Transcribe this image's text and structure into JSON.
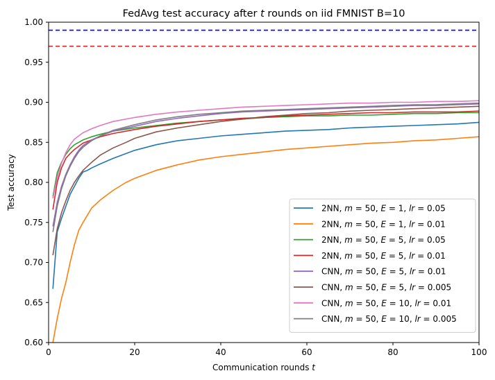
{
  "chart_data": {
    "type": "line",
    "title_parts": [
      "FedAvg test accuracy after ",
      "t",
      " rounds on iid FMNIST B=10"
    ],
    "xlabel_parts": [
      "Communication rounds ",
      "t"
    ],
    "ylabel": "Test accuracy",
    "xlim": [
      0,
      100
    ],
    "ylim": [
      0.6,
      1.0
    ],
    "xticks": [
      0,
      20,
      40,
      60,
      80,
      100
    ],
    "xtick_labels": [
      "0",
      "20",
      "40",
      "60",
      "80",
      "100"
    ],
    "yticks": [
      0.6,
      0.65,
      0.7,
      0.75,
      0.8,
      0.85,
      0.9,
      0.95,
      1.0
    ],
    "ytick_labels": [
      "0.60",
      "0.65",
      "0.70",
      "0.75",
      "0.80",
      "0.85",
      "0.90",
      "0.95",
      "1.00"
    ],
    "grid": false,
    "legend_position": "lower-right",
    "reference_lines": [
      {
        "y": 0.99,
        "color": "#0000ff",
        "style": "dashed"
      },
      {
        "y": 0.97,
        "color": "#d62728",
        "style": "dashed"
      }
    ],
    "series": [
      {
        "name": "2NN, m = 50, E = 1, lr = 0.05",
        "label_parts": [
          "2NN, ",
          "m",
          " = 50, ",
          "E",
          " = 1, ",
          "lr",
          " = 0.05"
        ],
        "color": "#1f77b4",
        "points": [
          [
            1,
            0.667
          ],
          [
            2,
            0.738
          ],
          [
            3,
            0.755
          ],
          [
            4,
            0.77
          ],
          [
            5,
            0.785
          ],
          [
            6,
            0.795
          ],
          [
            7,
            0.805
          ],
          [
            8,
            0.813
          ],
          [
            9,
            0.815
          ],
          [
            10,
            0.818
          ],
          [
            12,
            0.823
          ],
          [
            15,
            0.83
          ],
          [
            20,
            0.84
          ],
          [
            25,
            0.847
          ],
          [
            30,
            0.852
          ],
          [
            35,
            0.855
          ],
          [
            40,
            0.858
          ],
          [
            45,
            0.86
          ],
          [
            50,
            0.862
          ],
          [
            55,
            0.864
          ],
          [
            60,
            0.865
          ],
          [
            65,
            0.866
          ],
          [
            70,
            0.868
          ],
          [
            75,
            0.869
          ],
          [
            80,
            0.87
          ],
          [
            85,
            0.871
          ],
          [
            90,
            0.872
          ],
          [
            95,
            0.873
          ],
          [
            100,
            0.875
          ]
        ]
      },
      {
        "name": "2NN, m = 50, E = 1, lr = 0.01",
        "label_parts": [
          "2NN, ",
          "m",
          " = 50, ",
          "E",
          " = 1, ",
          "lr",
          " = 0.01"
        ],
        "color": "#ff7f0e",
        "points": [
          [
            1,
            0.6
          ],
          [
            2,
            0.63
          ],
          [
            3,
            0.655
          ],
          [
            4,
            0.675
          ],
          [
            5,
            0.7
          ],
          [
            6,
            0.722
          ],
          [
            7,
            0.74
          ],
          [
            8,
            0.75
          ],
          [
            10,
            0.768
          ],
          [
            12,
            0.778
          ],
          [
            15,
            0.79
          ],
          [
            18,
            0.8
          ],
          [
            20,
            0.805
          ],
          [
            25,
            0.815
          ],
          [
            30,
            0.822
          ],
          [
            35,
            0.828
          ],
          [
            40,
            0.832
          ],
          [
            45,
            0.835
          ],
          [
            50,
            0.838
          ],
          [
            55,
            0.841
          ],
          [
            60,
            0.843
          ],
          [
            65,
            0.845
          ],
          [
            70,
            0.847
          ],
          [
            75,
            0.849
          ],
          [
            80,
            0.85
          ],
          [
            85,
            0.852
          ],
          [
            90,
            0.853
          ],
          [
            95,
            0.855
          ],
          [
            100,
            0.857
          ]
        ]
      },
      {
        "name": "2NN, m = 50, E = 5, lr = 0.05",
        "label_parts": [
          "2NN, ",
          "m",
          " = 50, ",
          "E",
          " = 5, ",
          "lr",
          " = 0.05"
        ],
        "color": "#2ca02c",
        "points": [
          [
            1,
            0.782
          ],
          [
            2,
            0.812
          ],
          [
            3,
            0.825
          ],
          [
            4,
            0.835
          ],
          [
            5,
            0.842
          ],
          [
            6,
            0.847
          ],
          [
            7,
            0.85
          ],
          [
            8,
            0.853
          ],
          [
            10,
            0.857
          ],
          [
            12,
            0.86
          ],
          [
            15,
            0.864
          ],
          [
            20,
            0.868
          ],
          [
            25,
            0.871
          ],
          [
            30,
            0.874
          ],
          [
            35,
            0.876
          ],
          [
            40,
            0.878
          ],
          [
            45,
            0.879
          ],
          [
            50,
            0.881
          ],
          [
            55,
            0.882
          ],
          [
            60,
            0.883
          ],
          [
            65,
            0.883
          ],
          [
            70,
            0.884
          ],
          [
            75,
            0.884
          ],
          [
            80,
            0.885
          ],
          [
            85,
            0.886
          ],
          [
            90,
            0.886
          ],
          [
            95,
            0.887
          ],
          [
            100,
            0.887
          ]
        ]
      },
      {
        "name": "2NN, m = 50, E = 5, lr = 0.01",
        "label_parts": [
          "2NN, ",
          "m",
          " = 50, ",
          "E",
          " = 5, ",
          "lr",
          " = 0.01"
        ],
        "color": "#d62728",
        "points": [
          [
            1,
            0.766
          ],
          [
            2,
            0.8
          ],
          [
            3,
            0.818
          ],
          [
            4,
            0.83
          ],
          [
            5,
            0.836
          ],
          [
            6,
            0.841
          ],
          [
            7,
            0.845
          ],
          [
            8,
            0.849
          ],
          [
            10,
            0.853
          ],
          [
            12,
            0.857
          ],
          [
            15,
            0.861
          ],
          [
            20,
            0.866
          ],
          [
            25,
            0.87
          ],
          [
            30,
            0.873
          ],
          [
            35,
            0.876
          ],
          [
            40,
            0.878
          ],
          [
            45,
            0.88
          ],
          [
            50,
            0.881
          ],
          [
            55,
            0.883
          ],
          [
            60,
            0.884
          ],
          [
            65,
            0.885
          ],
          [
            70,
            0.886
          ],
          [
            75,
            0.887
          ],
          [
            80,
            0.887
          ],
          [
            85,
            0.888
          ],
          [
            90,
            0.888
          ],
          [
            95,
            0.888
          ],
          [
            100,
            0.889
          ]
        ]
      },
      {
        "name": "CNN, m = 50, E = 5, lr = 0.01",
        "label_parts": [
          "CNN, ",
          "m",
          " = 50, ",
          "E",
          " = 5, ",
          "lr",
          " = 0.01"
        ],
        "color": "#9467bd",
        "points": [
          [
            1,
            0.745
          ],
          [
            2,
            0.775
          ],
          [
            3,
            0.795
          ],
          [
            4,
            0.81
          ],
          [
            5,
            0.822
          ],
          [
            6,
            0.832
          ],
          [
            7,
            0.84
          ],
          [
            8,
            0.846
          ],
          [
            10,
            0.853
          ],
          [
            12,
            0.858
          ],
          [
            15,
            0.864
          ],
          [
            20,
            0.87
          ],
          [
            25,
            0.876
          ],
          [
            30,
            0.88
          ],
          [
            35,
            0.883
          ],
          [
            40,
            0.886
          ],
          [
            45,
            0.888
          ],
          [
            50,
            0.889
          ],
          [
            55,
            0.89
          ],
          [
            60,
            0.891
          ],
          [
            65,
            0.892
          ],
          [
            70,
            0.893
          ],
          [
            75,
            0.894
          ],
          [
            80,
            0.895
          ],
          [
            85,
            0.896
          ],
          [
            90,
            0.896
          ],
          [
            95,
            0.897
          ],
          [
            100,
            0.898
          ]
        ]
      },
      {
        "name": "CNN, m = 50, E = 5, lr = 0.005",
        "label_parts": [
          "CNN, ",
          "m",
          " = 50, ",
          "E",
          " = 5, ",
          "lr",
          " = 0.005"
        ],
        "color": "#8c564b",
        "points": [
          [
            1,
            0.709
          ],
          [
            2,
            0.742
          ],
          [
            3,
            0.762
          ],
          [
            4,
            0.777
          ],
          [
            5,
            0.79
          ],
          [
            6,
            0.8
          ],
          [
            7,
            0.808
          ],
          [
            8,
            0.815
          ],
          [
            10,
            0.825
          ],
          [
            12,
            0.834
          ],
          [
            15,
            0.843
          ],
          [
            18,
            0.85
          ],
          [
            20,
            0.855
          ],
          [
            25,
            0.863
          ],
          [
            30,
            0.868
          ],
          [
            35,
            0.872
          ],
          [
            40,
            0.876
          ],
          [
            45,
            0.879
          ],
          [
            50,
            0.882
          ],
          [
            55,
            0.884
          ],
          [
            60,
            0.886
          ],
          [
            65,
            0.887
          ],
          [
            70,
            0.889
          ],
          [
            75,
            0.89
          ],
          [
            80,
            0.891
          ],
          [
            85,
            0.892
          ],
          [
            90,
            0.893
          ],
          [
            95,
            0.894
          ],
          [
            100,
            0.895
          ]
        ]
      },
      {
        "name": "CNN, m = 50, E = 10, lr = 0.01",
        "label_parts": [
          "CNN, ",
          "m",
          " = 50, ",
          "E",
          " = 10, ",
          "lr",
          " = 0.01"
        ],
        "color": "#e377c2",
        "points": [
          [
            1,
            0.78
          ],
          [
            2,
            0.806
          ],
          [
            3,
            0.824
          ],
          [
            4,
            0.837
          ],
          [
            5,
            0.847
          ],
          [
            6,
            0.854
          ],
          [
            7,
            0.858
          ],
          [
            8,
            0.862
          ],
          [
            10,
            0.867
          ],
          [
            12,
            0.871
          ],
          [
            15,
            0.876
          ],
          [
            20,
            0.881
          ],
          [
            25,
            0.885
          ],
          [
            30,
            0.888
          ],
          [
            35,
            0.89
          ],
          [
            40,
            0.892
          ],
          [
            45,
            0.894
          ],
          [
            50,
            0.895
          ],
          [
            55,
            0.896
          ],
          [
            60,
            0.897
          ],
          [
            65,
            0.898
          ],
          [
            70,
            0.899
          ],
          [
            75,
            0.899
          ],
          [
            80,
            0.9
          ],
          [
            85,
            0.9
          ],
          [
            90,
            0.901
          ],
          [
            95,
            0.901
          ],
          [
            100,
            0.902
          ]
        ]
      },
      {
        "name": "CNN, m = 50, E = 10, lr = 0.005",
        "label_parts": [
          "CNN, ",
          "m",
          " = 50, ",
          "E",
          " = 10, ",
          "lr",
          " = 0.005"
        ],
        "color": "#7f7f7f",
        "points": [
          [
            1,
            0.738
          ],
          [
            2,
            0.77
          ],
          [
            3,
            0.792
          ],
          [
            4,
            0.808
          ],
          [
            5,
            0.82
          ],
          [
            6,
            0.83
          ],
          [
            7,
            0.838
          ],
          [
            8,
            0.844
          ],
          [
            10,
            0.852
          ],
          [
            12,
            0.858
          ],
          [
            15,
            0.865
          ],
          [
            20,
            0.872
          ],
          [
            25,
            0.878
          ],
          [
            30,
            0.882
          ],
          [
            35,
            0.885
          ],
          [
            40,
            0.887
          ],
          [
            45,
            0.889
          ],
          [
            50,
            0.89
          ],
          [
            55,
            0.891
          ],
          [
            60,
            0.892
          ],
          [
            65,
            0.893
          ],
          [
            70,
            0.894
          ],
          [
            75,
            0.895
          ],
          [
            80,
            0.896
          ],
          [
            85,
            0.897
          ],
          [
            90,
            0.897
          ],
          [
            95,
            0.898
          ],
          [
            100,
            0.899
          ]
        ]
      }
    ]
  }
}
